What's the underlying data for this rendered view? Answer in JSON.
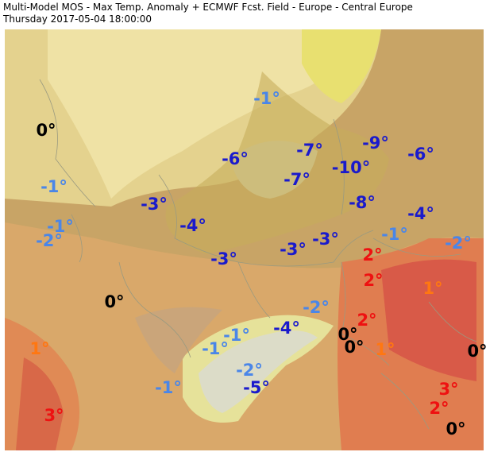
{
  "header": {
    "title": "Multi-Model MOS - Max Temp. Anomaly + ECMWF Fcst. Field - Europe - Central Europe",
    "subtitle": "Thursday 2017-05-04 18:00:00"
  },
  "labels": [
    "-1°",
    "0°",
    "-9°",
    "-7°",
    "-6°",
    "-6°",
    "-10°",
    "-7°",
    "-1°",
    "-3°",
    "-8°",
    "-4°",
    "-1°",
    "-4°",
    "-1°",
    "-2°",
    "-3°",
    "-2°",
    "-3°",
    "2°",
    "-3°",
    "2°",
    "1°",
    "0°",
    "-2°",
    "2°",
    "-4°",
    "-1°",
    "0°",
    "0°",
    "1°",
    "-1°",
    "0°",
    "1°",
    "-2°",
    "-5°",
    "-1°",
    "3°",
    "2°",
    "3°",
    "0°"
  ]
}
